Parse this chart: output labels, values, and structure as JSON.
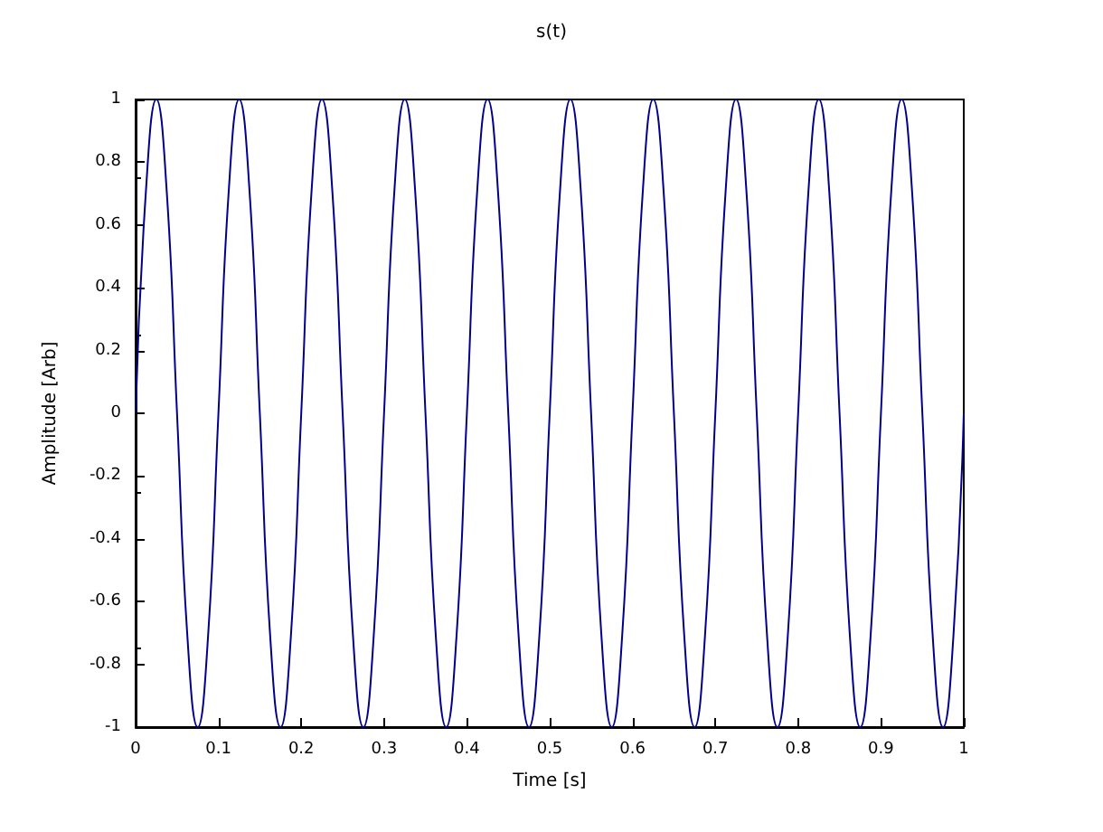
{
  "chart_data": {
    "type": "line",
    "title": "s(t)",
    "xlabel": "Time [s]",
    "ylabel": "Amplitude [Arb]",
    "x": [
      0,
      0.0125,
      0.025,
      0.0375,
      0.05,
      0.0625,
      0.075,
      0.0875,
      0.1,
      0.1125,
      0.125,
      0.1375,
      0.15,
      0.1625,
      0.175,
      0.1875,
      0.2,
      0.2125,
      0.225,
      0.2375,
      0.25,
      0.2625,
      0.275,
      0.2875,
      0.3,
      0.3125,
      0.325,
      0.3375,
      0.35,
      0.3625,
      0.375,
      0.3875,
      0.4,
      0.4125,
      0.425,
      0.4375,
      0.45,
      0.4625,
      0.475,
      0.4875,
      0.5,
      0.5125,
      0.525,
      0.5375,
      0.55,
      0.5625,
      0.575,
      0.5875,
      0.6,
      0.6125,
      0.625,
      0.6375,
      0.65,
      0.6625,
      0.675,
      0.6875,
      0.7,
      0.7125,
      0.725,
      0.7375,
      0.75,
      0.7625,
      0.775,
      0.7875,
      0.8,
      0.8125,
      0.825,
      0.8375,
      0.85,
      0.8625,
      0.875,
      0.8875,
      0.9,
      0.9125,
      0.925,
      0.9375,
      0.95,
      0.9625,
      0.975,
      0.9875,
      1
    ],
    "series": [
      {
        "color": "#00008b",
        "values": [
          0,
          0.71,
          1,
          0.71,
          0,
          -0.71,
          -1,
          -0.71,
          0,
          0.71,
          1,
          0.71,
          0,
          -0.71,
          -1,
          -0.71,
          0,
          0.71,
          1,
          0.71,
          0,
          -0.71,
          -1,
          -0.71,
          0,
          0.71,
          1,
          0.71,
          0,
          -0.71,
          -1,
          -0.71,
          0,
          0.71,
          1,
          0.71,
          0,
          -0.71,
          -1,
          -0.71,
          0,
          0.71,
          1,
          0.71,
          0,
          -0.71,
          -1,
          -0.71,
          0,
          0.71,
          1,
          0.71,
          0,
          -0.71,
          -1,
          -0.71,
          0,
          0.71,
          1,
          0.71,
          0,
          -0.71,
          -1,
          -0.71,
          0,
          0.71,
          1,
          0.71,
          0,
          -0.71,
          -1,
          -0.71,
          0,
          0.71,
          1,
          0.71,
          0,
          -0.71,
          -1,
          -0.71,
          0
        ]
      }
    ],
    "xlim": [
      0,
      1
    ],
    "xticks": [
      0,
      0.1,
      0.2,
      0.3,
      0.4,
      0.5,
      0.6,
      0.7,
      0.8,
      0.9,
      1
    ],
    "ylim": [
      -1,
      1
    ],
    "yticks": [
      -1,
      -0.8,
      -0.6,
      -0.4,
      -0.2,
      0,
      0.2,
      0.4,
      0.6,
      0.8,
      1
    ],
    "marker": "none",
    "line_style": "solid"
  }
}
